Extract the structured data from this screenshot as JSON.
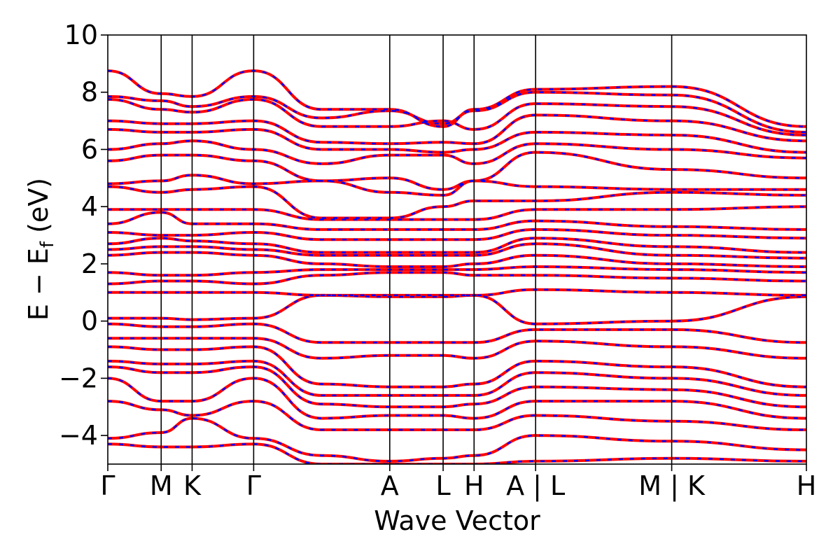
{
  "chart_data": {
    "type": "line",
    "xlabel": "Wave Vector",
    "ylabel_main": "E − E",
    "ylabel_sub": "f",
    "ylabel_unit": " (eV)",
    "ylim": [
      -5,
      10
    ],
    "yticks": [
      {
        "value": -4,
        "label": "−4"
      },
      {
        "value": -2,
        "label": "−2"
      },
      {
        "value": 0,
        "label": "0"
      },
      {
        "value": 2,
        "label": "2"
      },
      {
        "value": 4,
        "label": "4"
      },
      {
        "value": 6,
        "label": "6"
      },
      {
        "value": 8,
        "label": "8"
      },
      {
        "value": 10,
        "label": "10"
      }
    ],
    "kpath": [
      {
        "label": "Γ",
        "position": 0.0
      },
      {
        "label": "M",
        "position": 0.0764
      },
      {
        "label": "K",
        "position": 0.1207
      },
      {
        "label": "Γ",
        "position": 0.2088
      },
      {
        "label": "A",
        "position": 0.4036
      },
      {
        "label": "L",
        "position": 0.48
      },
      {
        "label": "H",
        "position": 0.5243
      },
      {
        "label": "A | L",
        "position": 0.6124
      },
      {
        "label": "M | K",
        "position": 0.8072
      },
      {
        "label": "H",
        "position": 1.0
      }
    ],
    "series": [
      {
        "color": "#ff0000",
        "style": "solid",
        "values": [
          [
            8.75,
            7.95,
            7.85,
            8.75,
            7.4,
            7.4,
            6.8,
            7.4,
            8.1,
            8.2,
            6.8
          ],
          [
            7.85,
            7.7,
            7.5,
            7.85,
            7.1,
            7.35,
            6.9,
            7.35,
            8.0,
            7.9,
            6.6
          ],
          [
            7.75,
            7.4,
            7.3,
            7.75,
            6.8,
            6.8,
            7.0,
            6.7,
            7.6,
            7.5,
            6.5
          ],
          [
            7.0,
            6.9,
            6.9,
            7.0,
            6.25,
            6.2,
            6.25,
            6.2,
            7.2,
            7.0,
            6.3
          ],
          [
            6.7,
            6.6,
            6.6,
            6.7,
            6.0,
            6.0,
            5.9,
            6.0,
            6.6,
            6.5,
            5.9
          ],
          [
            6.0,
            6.2,
            6.3,
            6.0,
            5.5,
            5.8,
            5.8,
            5.5,
            6.2,
            6.0,
            5.7
          ],
          [
            5.6,
            5.8,
            5.8,
            5.6,
            4.9,
            5.0,
            4.6,
            4.9,
            5.9,
            5.3,
            5.0
          ],
          [
            4.8,
            4.9,
            5.1,
            4.8,
            4.9,
            4.5,
            4.4,
            4.9,
            4.7,
            4.6,
            4.6
          ],
          [
            4.7,
            4.5,
            4.6,
            4.7,
            3.6,
            3.6,
            4.0,
            4.2,
            4.2,
            4.5,
            4.4
          ],
          [
            3.9,
            3.9,
            3.9,
            3.9,
            3.55,
            3.55,
            3.55,
            3.55,
            3.9,
            3.9,
            4.0
          ],
          [
            3.4,
            3.8,
            3.4,
            3.4,
            3.2,
            3.2,
            3.2,
            3.2,
            3.5,
            3.3,
            3.2
          ],
          [
            3.1,
            3.0,
            3.0,
            3.1,
            2.85,
            2.85,
            2.85,
            2.85,
            3.2,
            3.0,
            2.9
          ],
          [
            2.7,
            2.9,
            2.8,
            2.7,
            2.4,
            2.4,
            2.4,
            2.4,
            2.9,
            2.6,
            2.4
          ],
          [
            2.5,
            2.6,
            2.6,
            2.5,
            2.3,
            2.3,
            2.3,
            2.3,
            2.7,
            2.3,
            2.2
          ],
          [
            2.3,
            2.4,
            2.4,
            2.3,
            2.0,
            1.9,
            1.9,
            2.0,
            2.3,
            2.0,
            1.9
          ],
          [
            1.7,
            1.6,
            1.6,
            1.7,
            1.8,
            1.8,
            1.8,
            1.8,
            1.9,
            1.8,
            1.7
          ],
          [
            1.3,
            1.4,
            1.4,
            1.3,
            1.6,
            1.7,
            1.7,
            1.6,
            1.6,
            1.5,
            1.4
          ],
          [
            1.0,
            1.0,
            1.0,
            1.0,
            0.9,
            0.85,
            0.85,
            0.9,
            1.1,
            1.0,
            0.9
          ],
          [
            0.1,
            0.1,
            0.05,
            0.1,
            0.9,
            0.9,
            0.9,
            0.9,
            -0.1,
            0.0,
            0.85
          ],
          [
            -0.1,
            -0.2,
            -0.2,
            -0.1,
            -0.75,
            -0.75,
            -0.75,
            -0.75,
            -0.3,
            -0.3,
            -0.75
          ],
          [
            -0.6,
            -0.6,
            -0.6,
            -0.6,
            -1.3,
            -1.2,
            -1.2,
            -1.3,
            -0.7,
            -0.9,
            -1.3
          ],
          [
            -0.9,
            -1.0,
            -1.0,
            -0.9,
            -2.2,
            -2.3,
            -2.3,
            -2.2,
            -1.4,
            -1.6,
            -2.3
          ],
          [
            -1.4,
            -1.5,
            -1.5,
            -1.4,
            -2.6,
            -2.6,
            -2.6,
            -2.6,
            -1.8,
            -2.0,
            -2.6
          ],
          [
            -1.6,
            -1.8,
            -1.8,
            -1.6,
            -2.9,
            -3.0,
            -3.0,
            -2.9,
            -2.3,
            -2.4,
            -3.0
          ],
          [
            -2.0,
            -2.8,
            -2.8,
            -2.0,
            -3.4,
            -3.3,
            -3.3,
            -3.4,
            -2.8,
            -2.8,
            -3.4
          ],
          [
            -2.8,
            -3.1,
            -3.3,
            -2.8,
            -3.8,
            -3.8,
            -3.8,
            -3.8,
            -3.3,
            -3.5,
            -3.8
          ],
          [
            -4.1,
            -3.9,
            -3.4,
            -4.1,
            -4.7,
            -4.9,
            -4.8,
            -4.7,
            -4.0,
            -4.2,
            -4.5
          ],
          [
            -4.3,
            -4.4,
            -4.4,
            -4.3,
            -5.0,
            -5.0,
            -5.0,
            -5.0,
            -4.9,
            -4.8,
            -4.9
          ]
        ]
      },
      {
        "color": "#0000ff",
        "style": "dashed",
        "values": "same as solid series"
      }
    ]
  }
}
